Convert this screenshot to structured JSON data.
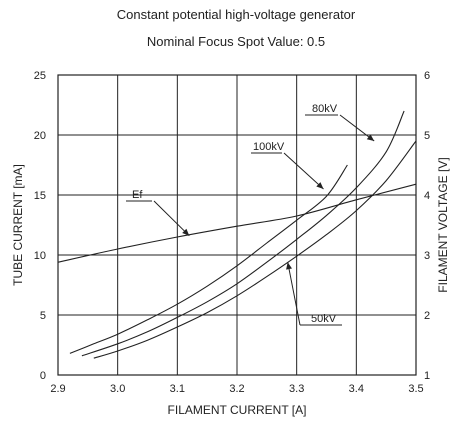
{
  "chart_data": {
    "type": "line",
    "title": "Constant potential high-voltage generator",
    "subtitle": "Nominal Focus Spot Value: 0.5",
    "xlabel": "FILAMENT CURRENT [A]",
    "ylabel": "TUBE CURRENT [mA]",
    "y2label": "FILAMENT VOLTAGE [V]",
    "xlim": [
      2.9,
      3.5
    ],
    "ylim": [
      0,
      25
    ],
    "y2lim": [
      1,
      6
    ],
    "x_ticks": [
      "2.9",
      "3.0",
      "3.1",
      "3.2",
      "3.3",
      "3.4",
      "3.5"
    ],
    "y_ticks": [
      "0",
      "5",
      "10",
      "15",
      "20",
      "25"
    ],
    "y2_ticks": [
      "1",
      "2",
      "3",
      "4",
      "5",
      "6"
    ],
    "grid": true,
    "series": [
      {
        "name": "100kV",
        "axis": "left",
        "points": [
          [
            2.92,
            1.8
          ],
          [
            2.96,
            2.6
          ],
          [
            3.0,
            3.4
          ],
          [
            3.05,
            4.6
          ],
          [
            3.1,
            5.9
          ],
          [
            3.15,
            7.4
          ],
          [
            3.2,
            9.1
          ],
          [
            3.25,
            11.0
          ],
          [
            3.3,
            12.9
          ],
          [
            3.35,
            14.9
          ],
          [
            3.385,
            17.5
          ]
        ]
      },
      {
        "name": "80kV",
        "axis": "left",
        "points": [
          [
            2.94,
            1.6
          ],
          [
            3.0,
            2.6
          ],
          [
            3.05,
            3.6
          ],
          [
            3.1,
            4.8
          ],
          [
            3.15,
            6.1
          ],
          [
            3.2,
            7.6
          ],
          [
            3.25,
            9.4
          ],
          [
            3.3,
            11.3
          ],
          [
            3.35,
            13.3
          ],
          [
            3.4,
            15.6
          ],
          [
            3.45,
            18.6
          ],
          [
            3.48,
            22.0
          ]
        ]
      },
      {
        "name": "50kV",
        "axis": "left",
        "points": [
          [
            2.96,
            1.4
          ],
          [
            3.0,
            2.0
          ],
          [
            3.05,
            2.9
          ],
          [
            3.1,
            4.0
          ],
          [
            3.15,
            5.2
          ],
          [
            3.2,
            6.6
          ],
          [
            3.25,
            8.2
          ],
          [
            3.3,
            9.9
          ],
          [
            3.35,
            11.7
          ],
          [
            3.4,
            13.7
          ],
          [
            3.45,
            16.2
          ],
          [
            3.5,
            19.5
          ]
        ]
      },
      {
        "name": "Ef",
        "axis": "right",
        "points": [
          [
            2.9,
            2.88
          ],
          [
            3.0,
            3.1
          ],
          [
            3.1,
            3.3
          ],
          [
            3.2,
            3.48
          ],
          [
            3.3,
            3.65
          ],
          [
            3.4,
            3.92
          ],
          [
            3.5,
            4.18
          ]
        ]
      }
    ],
    "annotations": [
      {
        "text": "80kV",
        "anchor_x": 3.43,
        "anchor_y": 19.5
      },
      {
        "text": "100kV",
        "anchor_x": 3.345,
        "anchor_y": 15.5
      },
      {
        "text": "Ef",
        "anchor_x": 3.12,
        "anchor_y": 3.32,
        "axis": "right"
      },
      {
        "text": "50kV",
        "anchor_x": 3.285,
        "anchor_y": 9.4
      }
    ]
  }
}
